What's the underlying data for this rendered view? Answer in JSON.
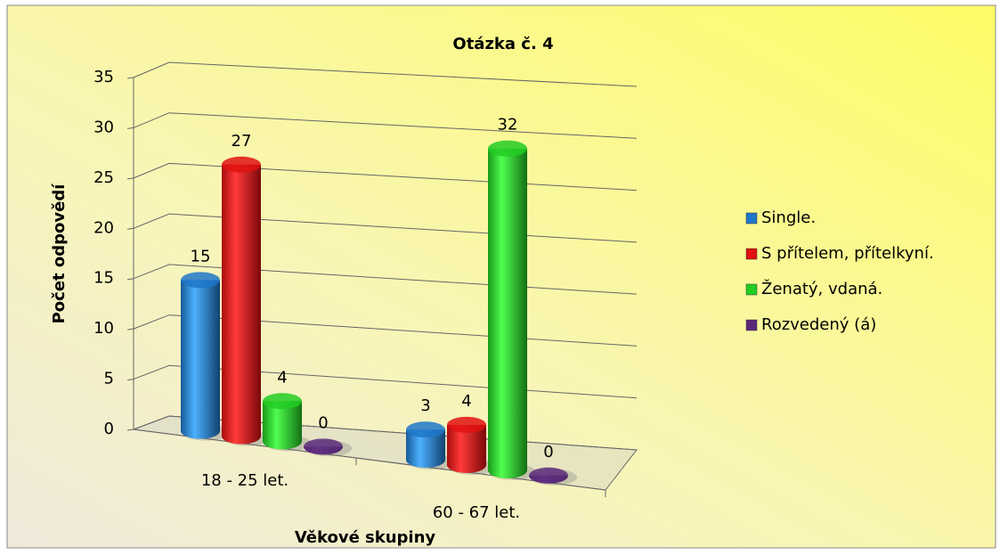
{
  "chart_data": {
    "type": "bar3d",
    "title": "Otázka č. 4",
    "xlabel": "Věkové skupiny",
    "ylabel": "Počet odpovědí",
    "categories": [
      "18 - 25 let.",
      "60 - 67 let."
    ],
    "series": [
      {
        "name": "Single.",
        "color": "#1f77c9",
        "values": [
          15,
          3
        ]
      },
      {
        "name": "S přítelem, přítelkyní.",
        "color": "#e01010",
        "values": [
          27,
          4
        ]
      },
      {
        "name": "Ženatý, vdaná.",
        "color": "#22cc22",
        "values": [
          4,
          32
        ]
      },
      {
        "name": "Rozvedený (á)",
        "color": "#5a2a7a",
        "values": [
          0,
          0
        ]
      }
    ],
    "ylim": [
      0,
      35
    ],
    "yticks": [
      0,
      5,
      10,
      15,
      20,
      25,
      30,
      35
    ],
    "grid": true,
    "legend": "right"
  }
}
